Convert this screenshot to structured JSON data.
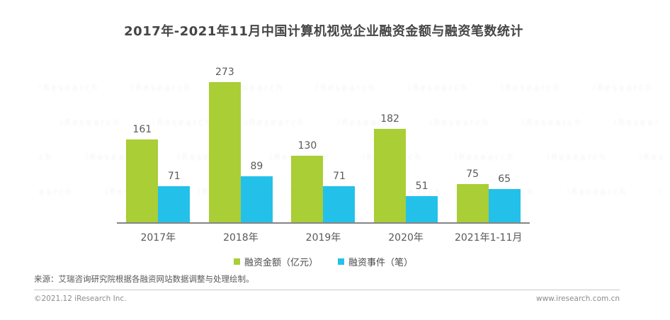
{
  "title": "2017年-2021年11月中国计算机视觉企业融资金额与融资笔数统计",
  "chart_data": {
    "type": "bar",
    "title": "2017年-2021年11月中国计算机视觉企业融资金额与融资笔数统计",
    "categories": [
      "2017年",
      "2018年",
      "2019年",
      "2020年",
      "2021年1-11月"
    ],
    "series": [
      {
        "name": "融资金额（亿元）",
        "color": "#a9ce36",
        "values": [
          161,
          273,
          130,
          182,
          75
        ]
      },
      {
        "name": "融资事件（笔）",
        "color": "#23c1ea",
        "values": [
          71,
          89,
          71,
          51,
          65
        ]
      }
    ],
    "value_labels": true,
    "y_axis_visible": false,
    "grid": false,
    "ylim": [
      0,
      280
    ],
    "legend_position": "bottom",
    "xlabel": "",
    "ylabel": ""
  },
  "source_note": "来源：艾瑞咨询研究院根据各融资网站数据调整与处理绘制。",
  "footer": {
    "copyright": "©2021.12 iResearch Inc.",
    "website": "www.iresearch.com.cn"
  },
  "watermark_text": "iResearch"
}
